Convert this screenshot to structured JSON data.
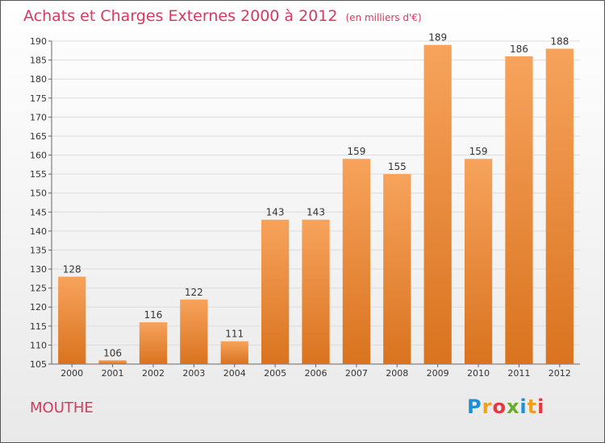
{
  "header": {
    "title": "Achats et Charges Externes 2000 à 2012",
    "unit": "(en milliers d'€)"
  },
  "footer": {
    "commune": "MOUTHE",
    "logo": "Proxiti"
  },
  "colors": {
    "bar_top": "#f7a35c",
    "bar_bottom": "#d9731f",
    "title": "#d9385f"
  },
  "chart_data": {
    "type": "bar",
    "title": "Achats et Charges Externes 2000 à 2012",
    "subtitle": "(en milliers d'€)",
    "categories": [
      "2000",
      "2001",
      "2002",
      "2003",
      "2004",
      "2005",
      "2006",
      "2007",
      "2008",
      "2009",
      "2010",
      "2011",
      "2012"
    ],
    "values": [
      128,
      106,
      116,
      122,
      111,
      143,
      143,
      159,
      155,
      189,
      159,
      186,
      188
    ],
    "ylim": [
      105,
      190
    ],
    "yticks": [
      105,
      110,
      115,
      120,
      125,
      130,
      135,
      140,
      145,
      150,
      155,
      160,
      165,
      170,
      175,
      180,
      185,
      190
    ],
    "grid": true,
    "legend": "none"
  }
}
